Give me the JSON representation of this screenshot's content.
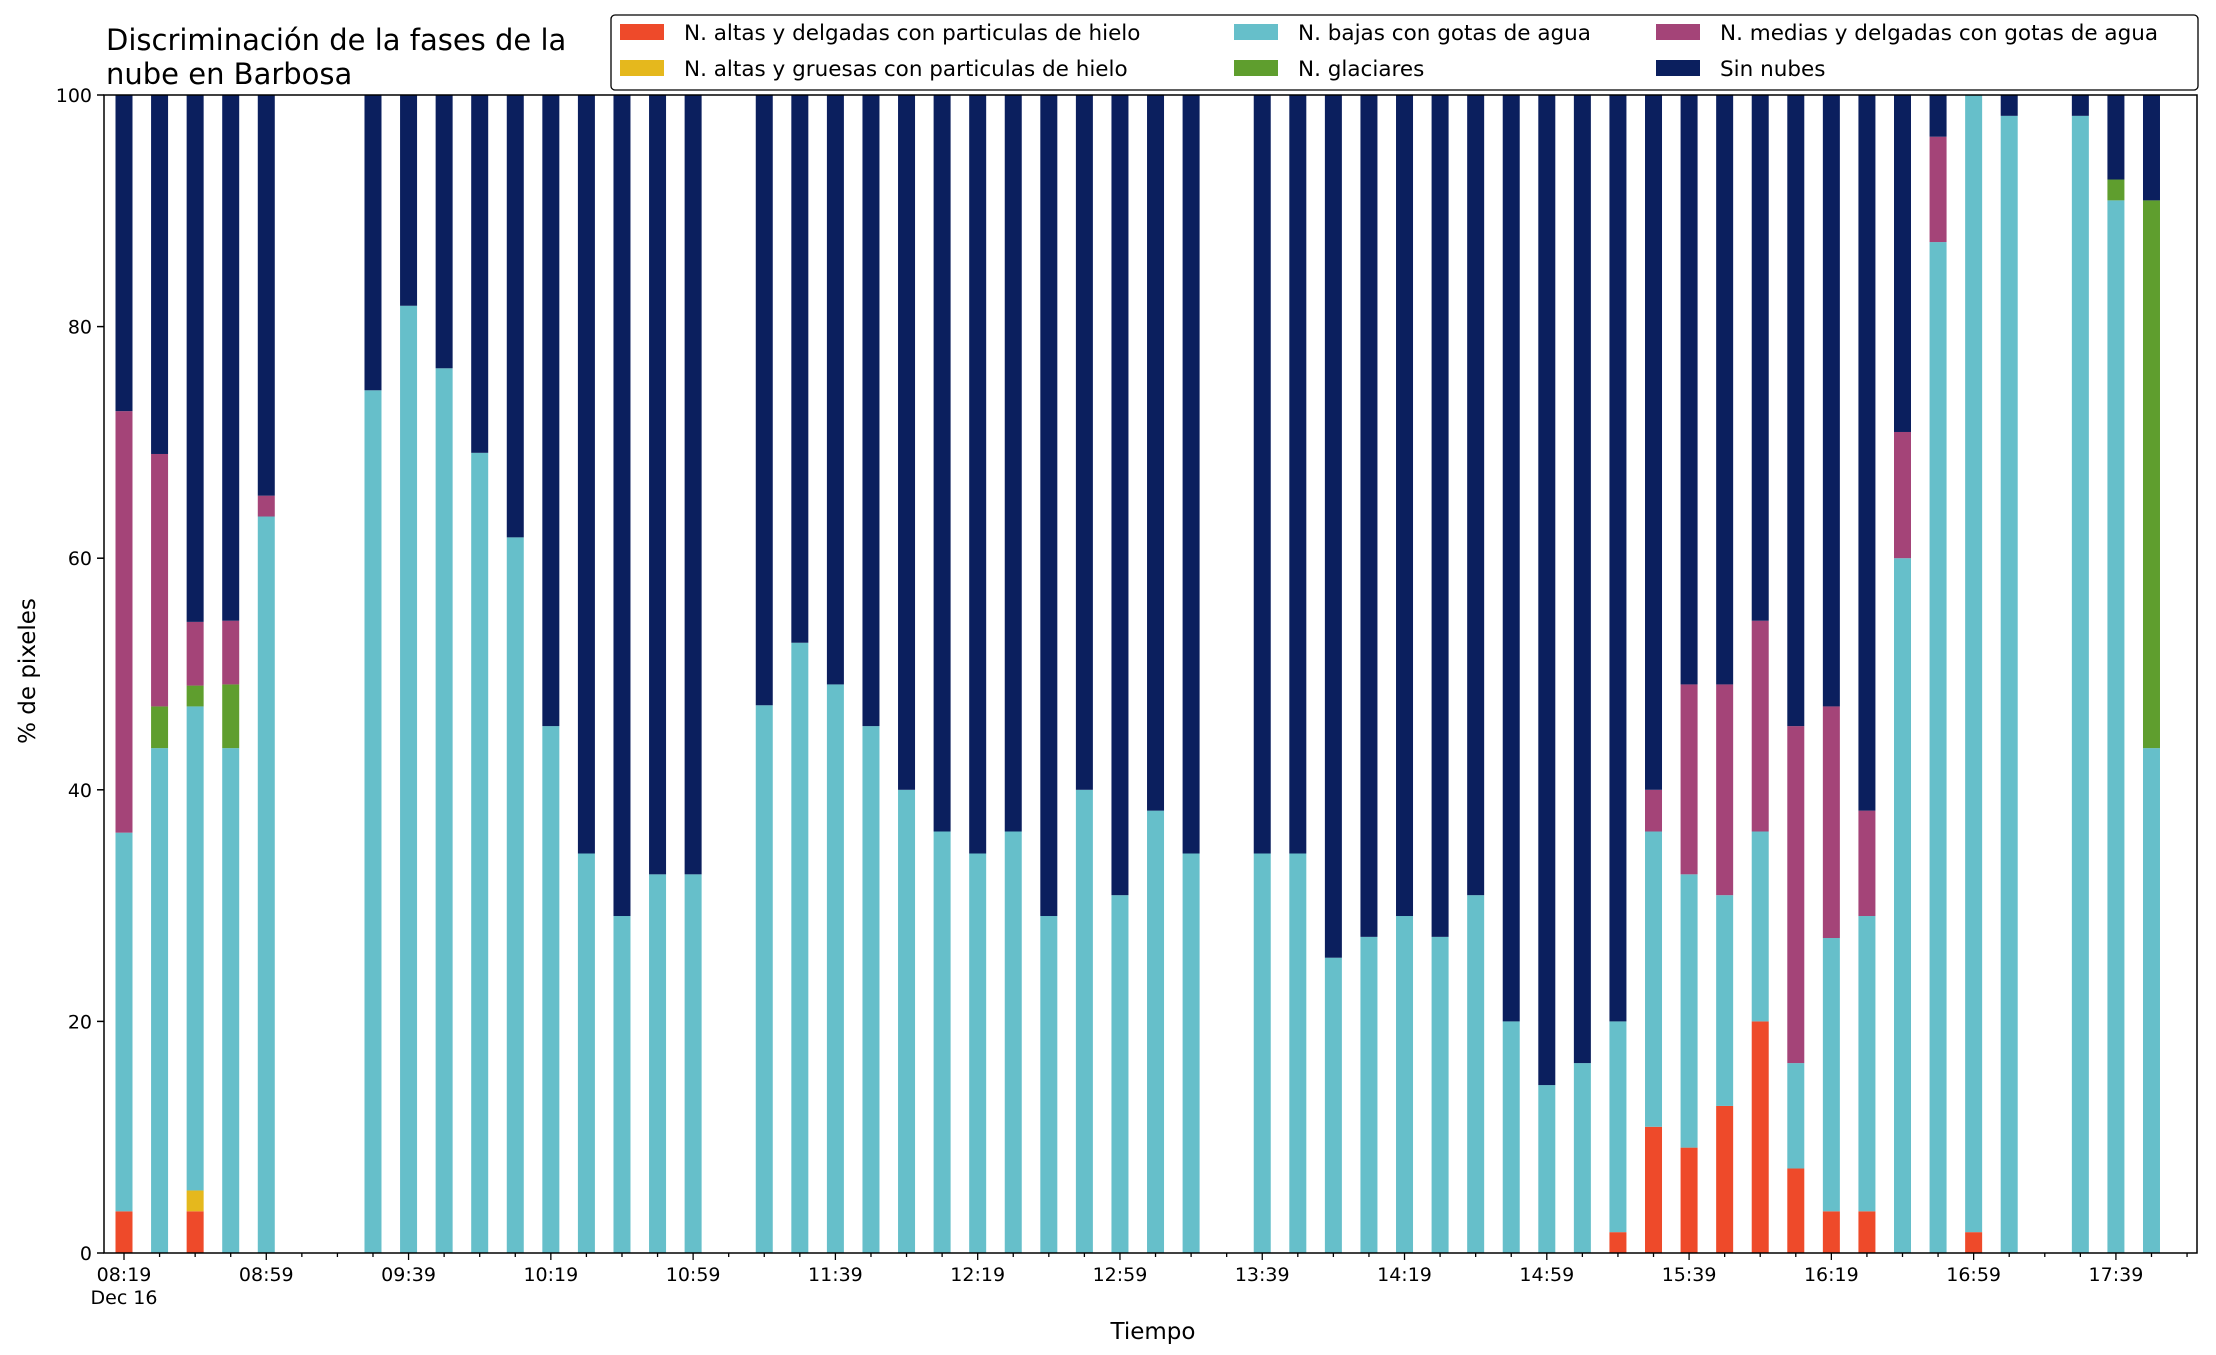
{
  "chart_data": {
    "type": "bar",
    "stacked": true,
    "title_lines": [
      "Discriminación de la fases de la",
      "nube en Barbosa"
    ],
    "xlabel": "Tiempo",
    "ylabel": "% de pixeles",
    "ylim": [
      0,
      100
    ],
    "yticks": [
      0,
      20,
      40,
      60,
      80,
      100
    ],
    "grid": false,
    "legend_position": "top-right",
    "x_start_minutes": 499,
    "x_step_minutes": 10,
    "x_end_minutes": 1079,
    "xtick_labels": [
      {
        "minute": 499,
        "label": "08:19",
        "sublabel": "Dec 16"
      },
      {
        "minute": 539,
        "label": "08:59"
      },
      {
        "minute": 579,
        "label": "09:39"
      },
      {
        "minute": 619,
        "label": "10:19"
      },
      {
        "minute": 659,
        "label": "10:59"
      },
      {
        "minute": 699,
        "label": "11:39"
      },
      {
        "minute": 739,
        "label": "12:19"
      },
      {
        "minute": 779,
        "label": "12:59"
      },
      {
        "minute": 819,
        "label": "13:39"
      },
      {
        "minute": 859,
        "label": "14:19"
      },
      {
        "minute": 899,
        "label": "14:59"
      },
      {
        "minute": 939,
        "label": "15:39"
      },
      {
        "minute": 979,
        "label": "16:19"
      },
      {
        "minute": 1019,
        "label": "16:59"
      },
      {
        "minute": 1059,
        "label": "17:39"
      }
    ],
    "legend_order": [
      "hielo_delgadas",
      "hielo_gruesas",
      "agua_bajas",
      "glaciares",
      "medias_agua",
      "sin_nubes"
    ],
    "series": [
      {
        "key": "hielo_delgadas",
        "name": "N. altas y delgadas con particulas de hielo",
        "color": "#ee4a2a"
      },
      {
        "key": "hielo_gruesas",
        "name": "N. altas y gruesas con particulas de hielo",
        "color": "#e5b81d"
      },
      {
        "key": "agua_bajas",
        "name": "N. bajas con gotas de agua",
        "color": "#66bfca"
      },
      {
        "key": "glaciares",
        "name": "N. glaciares",
        "color": "#5f9e2e"
      },
      {
        "key": "medias_agua",
        "name": "N. medias y delgadas con gotas de agua",
        "color": "#a44478"
      },
      {
        "key": "sin_nubes",
        "name": "Sin nubes",
        "color": "#0b1f5e"
      }
    ],
    "bars": [
      {
        "time": "08:19",
        "minute": 499,
        "values": [
          3.6,
          0,
          32.7,
          0,
          36.4,
          27.3
        ]
      },
      {
        "time": "08:29",
        "minute": 509,
        "values": [
          0,
          0,
          43.6,
          3.6,
          21.8,
          31.0
        ]
      },
      {
        "time": "08:39",
        "minute": 519,
        "values": [
          3.6,
          1.8,
          41.8,
          1.8,
          5.5,
          45.5
        ]
      },
      {
        "time": "08:49",
        "minute": 529,
        "values": [
          0,
          0,
          43.6,
          5.5,
          5.5,
          45.4
        ]
      },
      {
        "time": "08:59",
        "minute": 539,
        "values": [
          0,
          0,
          63.6,
          0,
          1.8,
          34.6
        ]
      },
      {
        "time": "09:29",
        "minute": 569,
        "values": [
          0,
          0,
          74.5,
          0,
          0,
          25.5
        ]
      },
      {
        "time": "09:39",
        "minute": 579,
        "values": [
          0,
          0,
          81.8,
          0,
          0,
          18.2
        ]
      },
      {
        "time": "09:49",
        "minute": 589,
        "values": [
          0,
          0,
          76.4,
          0,
          0,
          23.6
        ]
      },
      {
        "time": "09:59",
        "minute": 599,
        "values": [
          0,
          0,
          69.1,
          0,
          0,
          30.9
        ]
      },
      {
        "time": "10:09",
        "minute": 609,
        "values": [
          0,
          0,
          61.8,
          0,
          0,
          38.2
        ]
      },
      {
        "time": "10:19",
        "minute": 619,
        "values": [
          0,
          0,
          45.5,
          0,
          0,
          54.5
        ]
      },
      {
        "time": "10:29",
        "minute": 629,
        "values": [
          0,
          0,
          34.5,
          0,
          0,
          65.5
        ]
      },
      {
        "time": "10:39",
        "minute": 639,
        "values": [
          0,
          0,
          29.1,
          0,
          0,
          70.9
        ]
      },
      {
        "time": "10:49",
        "minute": 649,
        "values": [
          0,
          0,
          32.7,
          0,
          0,
          67.3
        ]
      },
      {
        "time": "10:59",
        "minute": 659,
        "values": [
          0,
          0,
          32.7,
          0,
          0,
          67.3
        ]
      },
      {
        "time": "11:19",
        "minute": 679,
        "values": [
          0,
          0,
          47.3,
          0,
          0,
          52.7
        ]
      },
      {
        "time": "11:29",
        "minute": 689,
        "values": [
          0,
          0,
          52.7,
          0,
          0,
          47.3
        ]
      },
      {
        "time": "11:39",
        "minute": 699,
        "values": [
          0,
          0,
          49.1,
          0,
          0,
          50.9
        ]
      },
      {
        "time": "11:49",
        "minute": 709,
        "values": [
          0,
          0,
          45.5,
          0,
          0,
          54.5
        ]
      },
      {
        "time": "11:59",
        "minute": 719,
        "values": [
          0,
          0,
          40.0,
          0,
          0,
          60.0
        ]
      },
      {
        "time": "12:09",
        "minute": 729,
        "values": [
          0,
          0,
          36.4,
          0,
          0,
          63.6
        ]
      },
      {
        "time": "12:19",
        "minute": 739,
        "values": [
          0,
          0,
          34.5,
          0,
          0,
          65.5
        ]
      },
      {
        "time": "12:29",
        "minute": 749,
        "values": [
          0,
          0,
          36.4,
          0,
          0,
          63.6
        ]
      },
      {
        "time": "12:39",
        "minute": 759,
        "values": [
          0,
          0,
          29.1,
          0,
          0,
          70.9
        ]
      },
      {
        "time": "12:49",
        "minute": 769,
        "values": [
          0,
          0,
          40.0,
          0,
          0,
          60.0
        ]
      },
      {
        "time": "12:59",
        "minute": 779,
        "values": [
          0,
          0,
          30.9,
          0,
          0,
          69.1
        ]
      },
      {
        "time": "13:09",
        "minute": 789,
        "values": [
          0,
          0,
          38.2,
          0,
          0,
          61.8
        ]
      },
      {
        "time": "13:19",
        "minute": 799,
        "values": [
          0,
          0,
          34.5,
          0,
          0,
          65.5
        ]
      },
      {
        "time": "13:39",
        "minute": 819,
        "values": [
          0,
          0,
          34.5,
          0,
          0,
          65.5
        ]
      },
      {
        "time": "13:49",
        "minute": 829,
        "values": [
          0,
          0,
          34.5,
          0,
          0,
          65.5
        ]
      },
      {
        "time": "13:59",
        "minute": 839,
        "values": [
          0,
          0,
          25.5,
          0,
          0,
          74.5
        ]
      },
      {
        "time": "14:09",
        "minute": 849,
        "values": [
          0,
          0,
          27.3,
          0,
          0,
          72.7
        ]
      },
      {
        "time": "14:19",
        "minute": 859,
        "values": [
          0,
          0,
          29.1,
          0,
          0,
          70.9
        ]
      },
      {
        "time": "14:29",
        "minute": 869,
        "values": [
          0,
          0,
          27.3,
          0,
          0,
          72.7
        ]
      },
      {
        "time": "14:39",
        "minute": 879,
        "values": [
          0,
          0,
          30.9,
          0,
          0,
          69.1
        ]
      },
      {
        "time": "14:49",
        "minute": 889,
        "values": [
          0,
          0,
          20.0,
          0,
          0,
          80.0
        ]
      },
      {
        "time": "14:59",
        "minute": 899,
        "values": [
          0,
          0,
          14.5,
          0,
          0,
          85.5
        ]
      },
      {
        "time": "15:09",
        "minute": 909,
        "values": [
          0,
          0,
          16.4,
          0,
          0,
          83.6
        ]
      },
      {
        "time": "15:19",
        "minute": 919,
        "values": [
          1.8,
          0,
          18.2,
          0,
          0,
          80.0
        ]
      },
      {
        "time": "15:29",
        "minute": 929,
        "values": [
          10.9,
          0,
          25.5,
          0,
          3.6,
          60.0
        ]
      },
      {
        "time": "15:39",
        "minute": 939,
        "values": [
          9.1,
          0,
          23.6,
          0,
          16.4,
          50.9
        ]
      },
      {
        "time": "15:49",
        "minute": 949,
        "values": [
          12.7,
          0,
          18.2,
          0,
          18.2,
          50.9
        ]
      },
      {
        "time": "15:59",
        "minute": 959,
        "values": [
          20.0,
          0,
          16.4,
          0,
          18.2,
          45.4
        ]
      },
      {
        "time": "16:09",
        "minute": 969,
        "values": [
          7.3,
          0,
          9.1,
          0,
          29.1,
          54.5
        ]
      },
      {
        "time": "16:19",
        "minute": 979,
        "values": [
          3.6,
          0,
          23.6,
          0,
          20.0,
          52.8
        ]
      },
      {
        "time": "16:29",
        "minute": 989,
        "values": [
          3.6,
          0,
          25.5,
          0,
          9.1,
          61.8
        ]
      },
      {
        "time": "16:39",
        "minute": 999,
        "values": [
          0,
          0,
          60.0,
          0,
          10.9,
          29.1
        ]
      },
      {
        "time": "16:49",
        "minute": 1009,
        "values": [
          0,
          0,
          87.3,
          0,
          9.1,
          3.6
        ]
      },
      {
        "time": "16:59",
        "minute": 1019,
        "values": [
          1.8,
          0,
          98.2,
          0,
          0,
          0
        ]
      },
      {
        "time": "17:09",
        "minute": 1029,
        "values": [
          0,
          0,
          98.2,
          0,
          0,
          1.8
        ]
      },
      {
        "time": "17:29",
        "minute": 1049,
        "values": [
          0,
          0,
          98.2,
          0,
          0,
          1.8
        ]
      },
      {
        "time": "17:39",
        "minute": 1059,
        "values": [
          0,
          0,
          90.9,
          1.8,
          0,
          7.3
        ]
      },
      {
        "time": "17:49",
        "minute": 1069,
        "values": [
          0,
          0,
          43.6,
          47.3,
          0,
          9.1
        ]
      }
    ]
  }
}
